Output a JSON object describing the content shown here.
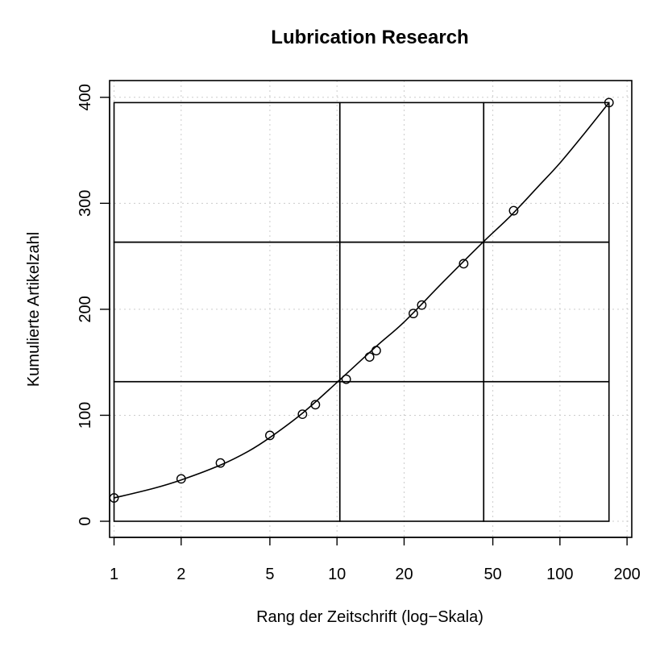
{
  "chart_data": {
    "type": "scatter",
    "title": "Lubrication Research",
    "xlabel": "Rang der Zeitschrift (log−Skala)",
    "ylabel": "Kumulierte Artikelzahl",
    "x_scale": "log",
    "xlim": [
      1,
      200
    ],
    "ylim": [
      0,
      400
    ],
    "x_ticks": [
      1,
      2,
      5,
      10,
      20,
      50,
      100,
      200
    ],
    "x_tick_labels": [
      "1",
      "2",
      "5",
      "10",
      "20",
      "50",
      "100",
      "200"
    ],
    "y_ticks": [
      0,
      100,
      200,
      300,
      400
    ],
    "y_tick_labels": [
      "0",
      "100",
      "200",
      "300",
      "400"
    ],
    "grid": true,
    "points": [
      {
        "x": 1,
        "y": 22
      },
      {
        "x": 2,
        "y": 40
      },
      {
        "x": 3,
        "y": 55
      },
      {
        "x": 5,
        "y": 81
      },
      {
        "x": 7,
        "y": 101
      },
      {
        "x": 8,
        "y": 110
      },
      {
        "x": 11,
        "y": 134
      },
      {
        "x": 14,
        "y": 155
      },
      {
        "x": 15,
        "y": 161
      },
      {
        "x": 22,
        "y": 196
      },
      {
        "x": 24,
        "y": 204
      },
      {
        "x": 37,
        "y": 243
      },
      {
        "x": 62,
        "y": 293
      },
      {
        "x": 166,
        "y": 395
      }
    ],
    "fitted_curve": [
      {
        "x": 1,
        "y": 22
      },
      {
        "x": 1.5,
        "y": 31
      },
      {
        "x": 2,
        "y": 39
      },
      {
        "x": 3,
        "y": 53
      },
      {
        "x": 4,
        "y": 66
      },
      {
        "x": 5,
        "y": 79
      },
      {
        "x": 7,
        "y": 102
      },
      {
        "x": 10,
        "y": 131
      },
      {
        "x": 15,
        "y": 165
      },
      {
        "x": 20,
        "y": 188
      },
      {
        "x": 30,
        "y": 226
      },
      {
        "x": 45,
        "y": 263
      },
      {
        "x": 60,
        "y": 288
      },
      {
        "x": 80,
        "y": 316
      },
      {
        "x": 100,
        "y": 338
      },
      {
        "x": 130,
        "y": 367
      },
      {
        "x": 166,
        "y": 395
      }
    ],
    "zone_boxes": {
      "x_bounds": [
        1,
        10.3,
        45.5,
        166
      ],
      "y_bounds": [
        0,
        131.7,
        263.3,
        395
      ]
    }
  }
}
